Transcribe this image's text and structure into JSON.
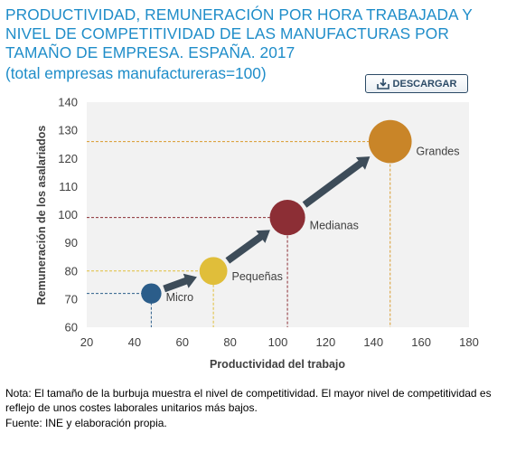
{
  "header": {
    "title": "PRODUCTIVIDAD, REMUNERACIÓN POR HORA TRABAJADA Y NIVEL DE COMPETITIVIDAD DE LAS MANUFACTURAS POR TAMAÑO DE EMPRESA. ESPAÑA. 2017",
    "subtitle": "(total empresas manufactureras=100)",
    "download_label": "DESCARGAR",
    "download_icon": "download-icon"
  },
  "chart_data": {
    "type": "scatter",
    "xlabel": "Productividad del trabajo",
    "ylabel": "Remuneración de los asalariados",
    "xlim": [
      20,
      180
    ],
    "ylim": [
      60,
      140
    ],
    "xticks": [
      20,
      40,
      60,
      80,
      100,
      120,
      140,
      160,
      180
    ],
    "yticks": [
      60,
      70,
      80,
      90,
      100,
      110,
      120,
      130,
      140
    ],
    "grid": false,
    "note": "bubble size shows competitiveness level",
    "points": [
      {
        "label": "Micro",
        "x": 47,
        "y": 72,
        "size": 1,
        "color": "#2b5d8a",
        "guide_color": "#2b5d8a"
      },
      {
        "label": "Pequeñas",
        "x": 73,
        "y": 80,
        "size": 2,
        "color": "#e0be3a",
        "guide_color": "#e0be3a"
      },
      {
        "label": "Medianas",
        "x": 104,
        "y": 99,
        "size": 3,
        "color": "#8c2e35",
        "guide_color": "#8c2e35"
      },
      {
        "label": "Grandes",
        "x": 147,
        "y": 126,
        "size": 4,
        "color": "#c98528",
        "guide_color": "#d99a2b"
      }
    ],
    "arrow_color": "#3d4c59"
  },
  "footer": {
    "note": "Nota: El tamaño de la burbuja muestra el nivel de competitividad. El mayor nivel de competitividad es reflejo de unos costes laborales unitarios más bajos.",
    "source": "Fuente: INE y elaboración propia."
  }
}
